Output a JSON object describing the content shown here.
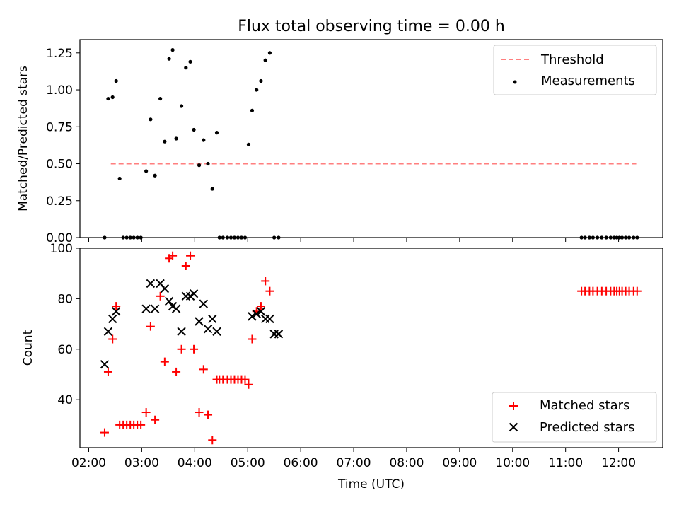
{
  "title": "Flux total observing time = 0.00 h",
  "chart_data": [
    {
      "type": "scatter",
      "panel": "top",
      "title": "Flux total observing time = 0.00 h",
      "ylabel": "Matched/Predicted stars",
      "xlabel": "",
      "ylim": [
        0,
        1.34
      ],
      "yticks": [
        0.0,
        0.25,
        0.5,
        0.75,
        1.0,
        1.25
      ],
      "ytick_labels": [
        "0.00",
        "0.25",
        "0.50",
        "0.75",
        "1.00",
        "1.25"
      ],
      "legend_position": "top-right",
      "legend": [
        "Threshold",
        "Measurements"
      ],
      "threshold": {
        "name": "Threshold",
        "value": 0.5,
        "x_start": "02:25",
        "x_end": "12:20",
        "color": "#ff7f7f",
        "style": "dashed"
      },
      "series": [
        {
          "name": "Measurements",
          "color": "#000000",
          "x": [
            "02:18",
            "02:22",
            "02:27",
            "02:31",
            "02:35",
            "02:39",
            "02:43",
            "02:47",
            "02:51",
            "02:55",
            "02:59",
            "03:05",
            "03:10",
            "03:15",
            "03:21",
            "03:26",
            "03:31",
            "03:35",
            "03:39",
            "03:45",
            "03:50",
            "03:55",
            "03:59",
            "04:05",
            "04:10",
            "04:15",
            "04:20",
            "04:25",
            "04:28",
            "04:32",
            "04:37",
            "04:41",
            "04:45",
            "04:49",
            "04:53",
            "04:57",
            "05:01",
            "05:05",
            "05:10",
            "05:15",
            "05:20",
            "05:25",
            "05:30",
            "05:35",
            "11:18",
            "11:22",
            "11:27",
            "11:31",
            "11:36",
            "11:41",
            "11:46",
            "11:51",
            "11:55",
            "11:58",
            "12:01",
            "12:04",
            "12:08",
            "12:12",
            "12:17",
            "12:21"
          ],
          "y": [
            0.0,
            0.94,
            0.95,
            1.06,
            0.4,
            0.0,
            0.0,
            0.0,
            0.0,
            0.0,
            0.0,
            0.45,
            0.8,
            0.42,
            0.94,
            0.65,
            1.21,
            1.27,
            0.67,
            0.89,
            1.15,
            1.19,
            0.73,
            0.49,
            0.66,
            0.5,
            0.33,
            0.71,
            0.0,
            0.0,
            0.0,
            0.0,
            0.0,
            0.0,
            0.0,
            0.0,
            0.63,
            0.86,
            1.0,
            1.06,
            1.2,
            1.25,
            0.0,
            0.0,
            0.0,
            0.0,
            0.0,
            0.0,
            0.0,
            0.0,
            0.0,
            0.0,
            0.0,
            0.0,
            0.0,
            0.0,
            0.0,
            0.0,
            0.0,
            0.0
          ]
        }
      ]
    },
    {
      "type": "scatter",
      "panel": "bottom",
      "xlabel": "Time (UTC)",
      "ylabel": "Count",
      "ylim": [
        21,
        100
      ],
      "yticks": [
        40,
        60,
        80,
        100
      ],
      "ytick_labels": [
        "40",
        "60",
        "80",
        "100"
      ],
      "xticks": [
        "02:00",
        "03:00",
        "04:00",
        "05:00",
        "06:00",
        "07:00",
        "08:00",
        "09:00",
        "10:00",
        "11:00",
        "12:00"
      ],
      "xlim": [
        "01:50",
        "12:50"
      ],
      "legend_position": "bottom-right",
      "legend": [
        "Matched stars",
        "Predicted stars"
      ],
      "series": [
        {
          "name": "Matched stars",
          "marker": "+",
          "color": "#ff0000",
          "x": [
            "02:18",
            "02:22",
            "02:27",
            "02:31",
            "02:35",
            "02:39",
            "02:43",
            "02:47",
            "02:51",
            "02:55",
            "02:59",
            "03:05",
            "03:10",
            "03:15",
            "03:21",
            "03:26",
            "03:31",
            "03:35",
            "03:39",
            "03:45",
            "03:50",
            "03:55",
            "03:59",
            "04:05",
            "04:10",
            "04:15",
            "04:20",
            "04:25",
            "04:28",
            "04:32",
            "04:37",
            "04:41",
            "04:45",
            "04:49",
            "04:53",
            "04:57",
            "05:01",
            "05:05",
            "05:10",
            "05:15",
            "05:20",
            "05:25",
            "05:30",
            "05:35",
            "11:18",
            "11:22",
            "11:27",
            "11:31",
            "11:36",
            "11:41",
            "11:46",
            "11:51",
            "11:55",
            "11:58",
            "12:01",
            "12:04",
            "12:08",
            "12:12",
            "12:17",
            "12:21"
          ],
          "y": [
            27,
            51,
            64,
            77,
            30,
            30,
            30,
            30,
            30,
            30,
            30,
            35,
            69,
            32,
            81,
            55,
            96,
            97,
            51,
            60,
            93,
            97,
            60,
            35,
            52,
            34,
            24,
            48,
            48,
            48,
            48,
            48,
            48,
            48,
            48,
            48,
            46,
            64,
            75,
            77,
            87,
            83,
            null,
            null,
            83,
            83,
            83,
            83,
            83,
            83,
            83,
            83,
            83,
            83,
            83,
            83,
            83,
            83,
            83,
            83
          ]
        },
        {
          "name": "Predicted stars",
          "marker": "x",
          "color": "#000000",
          "x": [
            "02:18",
            "02:22",
            "02:27",
            "02:31",
            "03:05",
            "03:10",
            "03:15",
            "03:21",
            "03:26",
            "03:31",
            "03:35",
            "03:39",
            "03:45",
            "03:50",
            "03:55",
            "03:59",
            "04:05",
            "04:10",
            "04:15",
            "04:20",
            "04:25",
            "05:05",
            "05:10",
            "05:15",
            "05:20",
            "05:25",
            "05:30",
            "05:35"
          ],
          "y": [
            54,
            67,
            72,
            75,
            76,
            86,
            76,
            86,
            84,
            79,
            77,
            76,
            67,
            81,
            81,
            82,
            71,
            78,
            68,
            72,
            67,
            73,
            74,
            75,
            72,
            72,
            66,
            66
          ]
        }
      ]
    }
  ]
}
